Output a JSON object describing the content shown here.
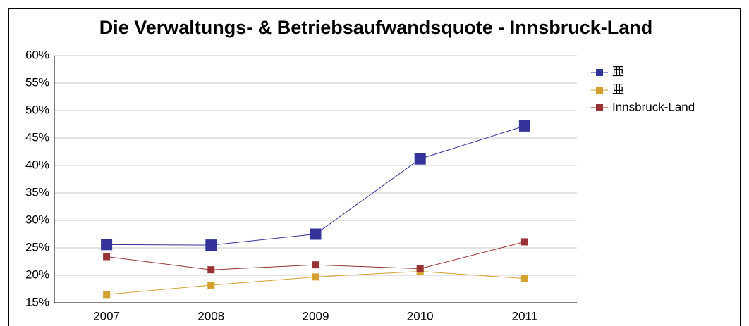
{
  "chart_data": {
    "type": "line",
    "title": "Die Verwaltungs- & Betriebsaufwandsquote - Innsbruck-Land",
    "categories": [
      "2007",
      "2008",
      "2009",
      "2010",
      "2011"
    ],
    "series": [
      {
        "name": "亜",
        "color": "#333399",
        "values": [
          25.6,
          25.5,
          27.5,
          41.2,
          47.2
        ]
      },
      {
        "name": "亜",
        "color": "#d4a030",
        "values": [
          16.5,
          18.2,
          19.7,
          20.7,
          19.4
        ]
      },
      {
        "name": "Innsbruck-Land",
        "color": "#993333",
        "values": [
          23.4,
          21.0,
          21.9,
          21.2,
          26.1
        ]
      }
    ],
    "ylim": [
      15,
      60
    ],
    "yticks": [
      {
        "value": 15,
        "label": "15%"
      },
      {
        "value": 20,
        "label": "20%"
      },
      {
        "value": 25,
        "label": "25%"
      },
      {
        "value": 30,
        "label": "30%"
      },
      {
        "value": 35,
        "label": "35%"
      },
      {
        "value": 40,
        "label": "40%"
      },
      {
        "value": 45,
        "label": "45%"
      },
      {
        "value": 50,
        "label": "50%"
      },
      {
        "value": 55,
        "label": "55%"
      },
      {
        "value": 60,
        "label": "60%"
      }
    ],
    "grid": true,
    "legend": "right"
  }
}
